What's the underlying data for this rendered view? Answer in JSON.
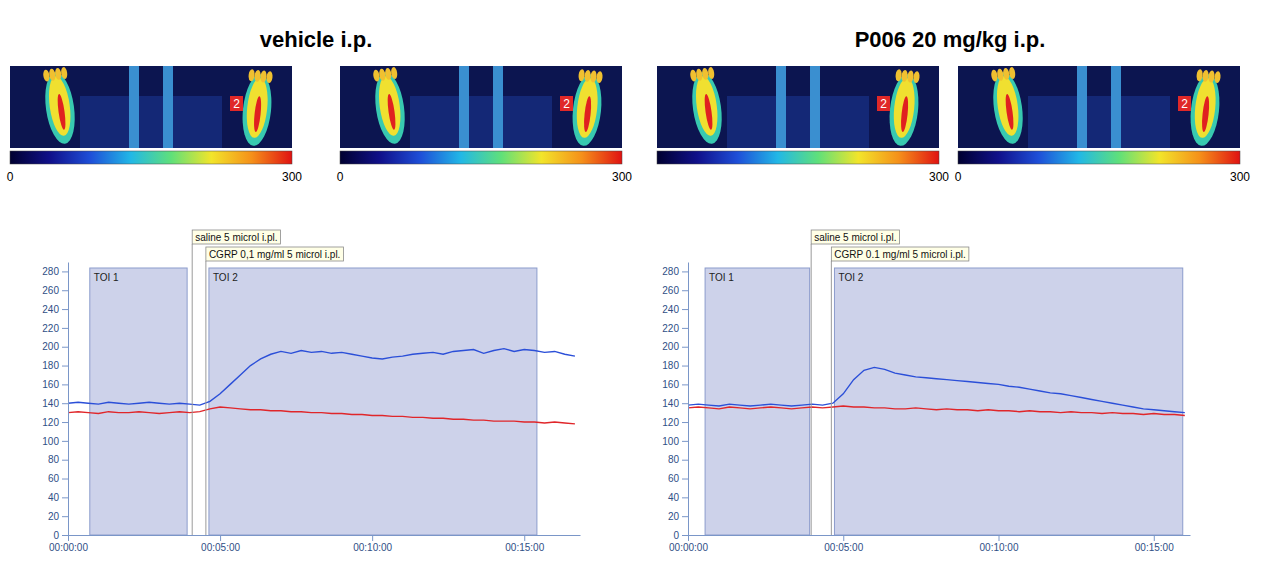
{
  "chart_data": [
    {
      "type": "line",
      "title": "vehicle i.p.",
      "images": [
        {
          "label": "2",
          "colorbar_range": [
            0,
            300
          ],
          "colorbar_ticks": [
            0,
            300
          ]
        },
        {
          "label": "2",
          "colorbar_range": [
            0,
            300
          ],
          "colorbar_ticks": [
            0,
            300
          ]
        }
      ],
      "xlim": [
        0,
        1010
      ],
      "xticks": [
        {
          "value": 0,
          "label": "00:00:00"
        },
        {
          "value": 300,
          "label": "00:05:00"
        },
        {
          "value": 600,
          "label": "00:10:00"
        },
        {
          "value": 900,
          "label": "00:15:00"
        }
      ],
      "ylim": [
        0,
        290
      ],
      "yticks": [
        0,
        20,
        40,
        60,
        80,
        100,
        120,
        140,
        160,
        180,
        200,
        220,
        240,
        260,
        280
      ],
      "regions": [
        {
          "label": "TOI 1",
          "start": 43,
          "end": 235
        },
        {
          "label": "TOI 2",
          "start": 278,
          "end": 925
        }
      ],
      "annotations": [
        {
          "text": "saline 5 microl i.pl.",
          "x": 245
        },
        {
          "text": "CGRP 0,1 mg/ml 5 microl i.pl.",
          "x": 272
        }
      ],
      "x": [
        0,
        20,
        40,
        60,
        80,
        100,
        120,
        140,
        160,
        180,
        200,
        220,
        240,
        260,
        280,
        300,
        320,
        340,
        360,
        380,
        400,
        420,
        440,
        460,
        480,
        500,
        520,
        540,
        560,
        580,
        600,
        620,
        640,
        660,
        680,
        700,
        720,
        740,
        760,
        780,
        800,
        820,
        840,
        860,
        880,
        900,
        920,
        940,
        960,
        980,
        1000
      ],
      "series": [
        {
          "color": "#2b4fd8",
          "values": [
            140,
            141,
            140,
            139,
            141,
            140,
            139,
            140,
            141,
            140,
            139,
            140,
            139,
            138,
            142,
            150,
            160,
            170,
            180,
            187,
            192,
            195,
            193,
            196,
            194,
            195,
            193,
            194,
            192,
            190,
            188,
            187,
            189,
            190,
            192,
            193,
            194,
            192,
            195,
            196,
            197,
            193,
            196,
            198,
            195,
            197,
            196,
            194,
            195,
            192,
            190
          ]
        },
        {
          "color": "#e0262a",
          "values": [
            130,
            131,
            130,
            129,
            131,
            130,
            130,
            131,
            130,
            129,
            130,
            131,
            130,
            131,
            134,
            136,
            135,
            134,
            133,
            133,
            132,
            132,
            131,
            131,
            130,
            130,
            129,
            129,
            128,
            128,
            127,
            127,
            126,
            126,
            125,
            125,
            124,
            124,
            123,
            123,
            122,
            122,
            121,
            121,
            121,
            120,
            120,
            119,
            120,
            119,
            118
          ]
        }
      ]
    },
    {
      "type": "line",
      "title": "P006 20 mg/kg i.p.",
      "images": [
        {
          "label": "2",
          "colorbar_range": [
            0,
            300
          ],
          "colorbar_ticks": [
            300
          ]
        },
        {
          "label": "2",
          "colorbar_range": [
            0,
            300
          ],
          "colorbar_ticks": [
            0,
            300
          ]
        }
      ],
      "xlim": [
        0,
        970
      ],
      "xticks": [
        {
          "value": 0,
          "label": "00:00:00"
        },
        {
          "value": 300,
          "label": "00:05:00"
        },
        {
          "value": 600,
          "label": "00:10:00"
        },
        {
          "value": 900,
          "label": "00:15:00"
        }
      ],
      "ylim": [
        0,
        290
      ],
      "yticks": [
        0,
        20,
        40,
        60,
        80,
        100,
        120,
        140,
        160,
        180,
        200,
        220,
        240,
        260,
        280
      ],
      "regions": [
        {
          "label": "TOI 1",
          "start": 33,
          "end": 235
        },
        {
          "label": "TOI 2",
          "start": 283,
          "end": 956
        }
      ],
      "annotations": [
        {
          "text": "saline 5 microl i.pl.",
          "x": 238
        },
        {
          "text": "CGRP 0.1 mg/ml 5 microl i.pl.",
          "x": 277
        }
      ],
      "x": [
        0,
        20,
        40,
        60,
        80,
        100,
        120,
        140,
        160,
        180,
        200,
        220,
        240,
        260,
        280,
        300,
        320,
        340,
        360,
        380,
        400,
        420,
        440,
        460,
        480,
        500,
        520,
        540,
        560,
        580,
        600,
        620,
        640,
        660,
        680,
        700,
        720,
        740,
        760,
        780,
        800,
        820,
        840,
        860,
        880,
        900,
        920,
        940,
        960
      ],
      "series": [
        {
          "color": "#2b4fd8",
          "values": [
            138,
            139,
            138,
            137,
            139,
            138,
            137,
            138,
            139,
            138,
            137,
            138,
            139,
            138,
            140,
            150,
            165,
            175,
            178,
            176,
            172,
            170,
            168,
            167,
            166,
            165,
            164,
            163,
            162,
            161,
            160,
            158,
            157,
            155,
            153,
            151,
            150,
            148,
            146,
            144,
            142,
            140,
            138,
            136,
            134,
            133,
            132,
            131,
            130
          ]
        },
        {
          "color": "#e0262a",
          "values": [
            135,
            136,
            135,
            134,
            136,
            135,
            134,
            135,
            136,
            135,
            134,
            135,
            136,
            135,
            136,
            137,
            136,
            136,
            135,
            135,
            134,
            134,
            135,
            134,
            133,
            134,
            133,
            133,
            132,
            133,
            132,
            132,
            131,
            132,
            131,
            131,
            130,
            131,
            130,
            130,
            129,
            130,
            129,
            129,
            128,
            129,
            128,
            128,
            127
          ]
        }
      ]
    }
  ]
}
